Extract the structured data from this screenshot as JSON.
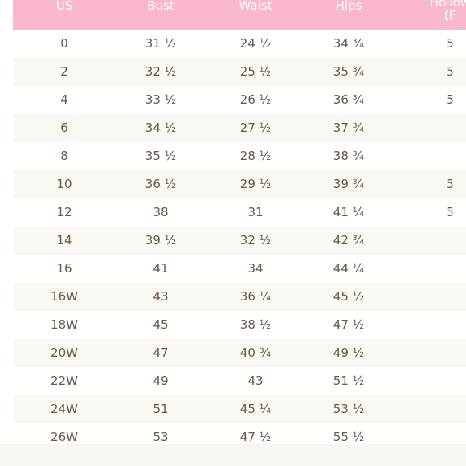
{
  "table": {
    "header": [
      "US",
      "Bust",
      "Waist",
      "Hips",
      [
        "Hollow",
        "(F"
      ]
    ],
    "rows": [
      [
        "0",
        "31 ½",
        "24 ½",
        "34 ¾",
        "5"
      ],
      [
        "2",
        "32 ½",
        "25 ½",
        "35 ¾",
        "5"
      ],
      [
        "4",
        "33 ½",
        "26 ½",
        "36 ¾",
        "5"
      ],
      [
        "6",
        "34 ½",
        "27 ½",
        "37 ¾"
      ],
      [
        "8",
        "35 ½",
        "28 ½",
        "38 ¾"
      ],
      [
        "10",
        "36 ½",
        "29 ½",
        "39 ¾",
        "5"
      ],
      [
        "12",
        "38",
        "31",
        "41 ¼",
        "5"
      ],
      [
        "14",
        "39 ½",
        "32 ½",
        "42 ¾"
      ],
      [
        "16",
        "41",
        "34",
        "44 ¼"
      ],
      [
        "16W",
        "43",
        "36 ¼",
        "45 ½"
      ],
      [
        "18W",
        "45",
        "38 ½",
        "47 ½"
      ],
      [
        "20W",
        "47",
        "40 ¾",
        "49 ½"
      ],
      [
        "22W",
        "49",
        "43",
        "51 ½"
      ],
      [
        "24W",
        "51",
        "45 ¼",
        "53 ½"
      ],
      [
        "26W",
        "53",
        "47 ½",
        "55 ½"
      ]
    ]
  }
}
